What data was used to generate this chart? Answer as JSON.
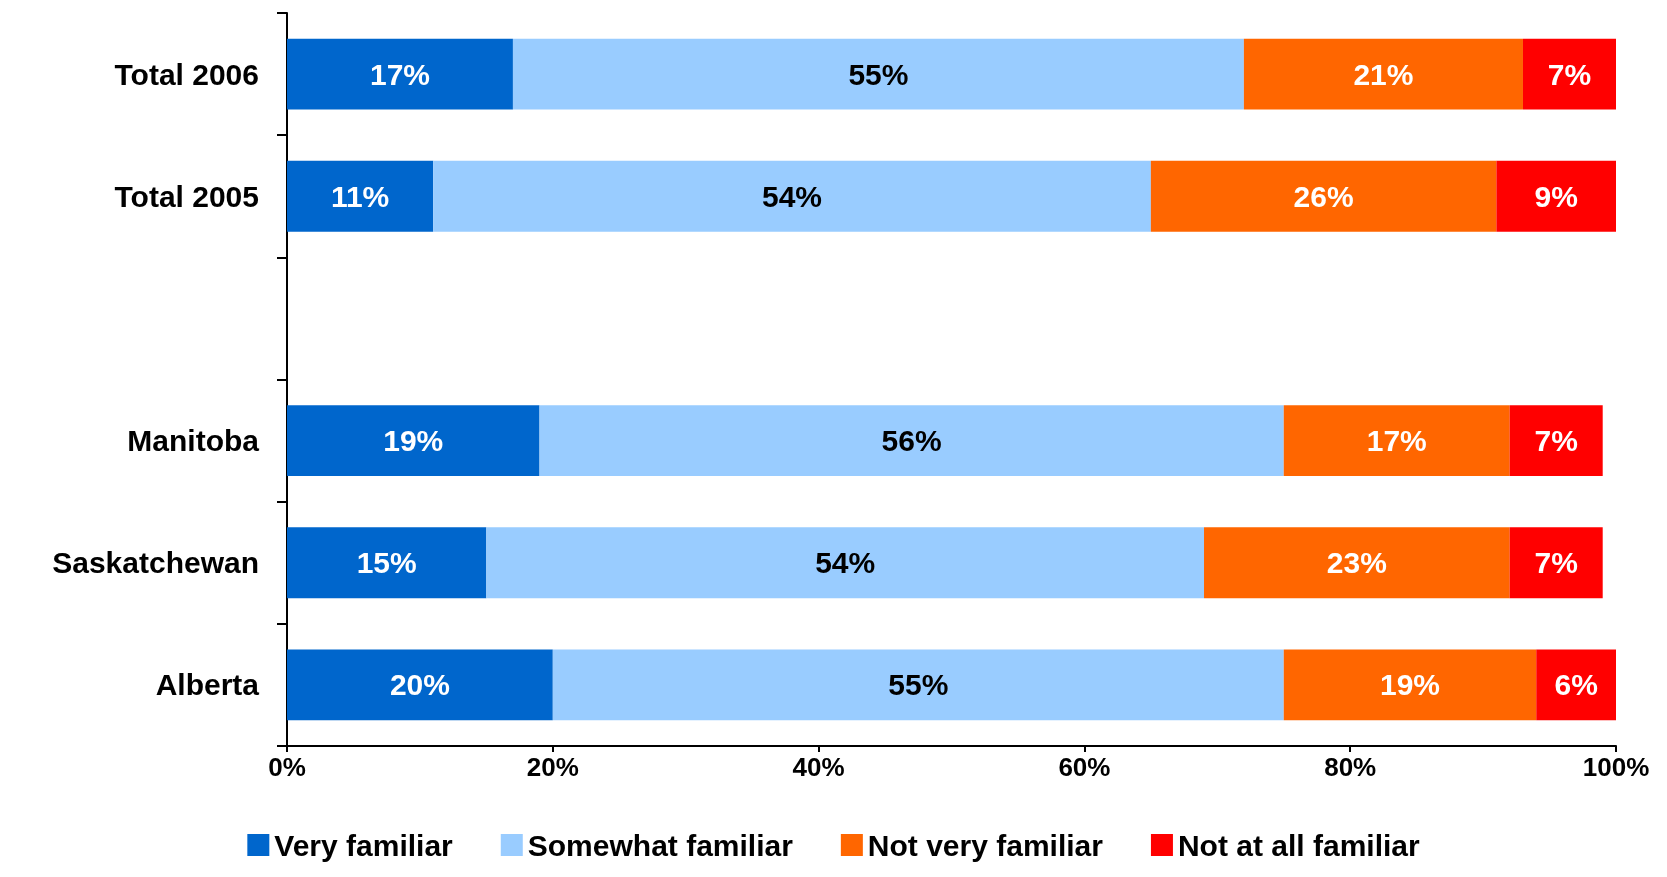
{
  "chart_data": {
    "type": "bar",
    "orientation": "horizontal",
    "stacked": true,
    "categories": [
      "Total 2006",
      "Total 2005",
      null,
      "Manitoba",
      "Saskatchewan",
      "Alberta"
    ],
    "series": [
      {
        "name": "Very familiar",
        "color": "#0066cc",
        "values": [
          17,
          11,
          null,
          19,
          15,
          20
        ],
        "value_labels": [
          "17%",
          "11%",
          null,
          "19%",
          "15%",
          "20%"
        ]
      },
      {
        "name": "Somewhat familiar",
        "color": "#99ccff",
        "values": [
          55,
          54,
          null,
          56,
          54,
          55
        ],
        "value_labels": [
          "55%",
          "54%",
          null,
          "56%",
          "54%",
          "55%"
        ]
      },
      {
        "name": "Not very familiar",
        "color": "#ff6600",
        "values": [
          21,
          26,
          null,
          17,
          23,
          19
        ],
        "value_labels": [
          "21%",
          "26%",
          null,
          "17%",
          "23%",
          "19%"
        ]
      },
      {
        "name": "Not at all familiar",
        "color": "#ff0000",
        "values": [
          7,
          9,
          null,
          7,
          7,
          6
        ],
        "value_labels": [
          "7%",
          "9%",
          null,
          "7%",
          "7%",
          "6%"
        ]
      }
    ],
    "xlim": [
      0,
      100
    ],
    "xticks": [
      {
        "value": 0,
        "label": "0%"
      },
      {
        "value": 20,
        "label": "20%"
      },
      {
        "value": 40,
        "label": "40%"
      },
      {
        "value": 60,
        "label": "60%"
      },
      {
        "value": 80,
        "label": "80%"
      },
      {
        "value": 100,
        "label": "100%"
      }
    ],
    "grid": false,
    "legend": "bottom"
  }
}
